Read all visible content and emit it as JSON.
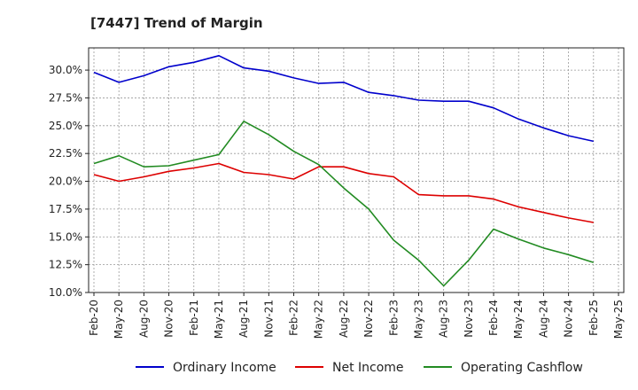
{
  "chart_data": {
    "type": "line",
    "title": "[7447]  Trend of Margin",
    "xlabel": "",
    "ylabel": "",
    "ylim": [
      10.0,
      32.0
    ],
    "yticks": [
      "10.0%",
      "12.5%",
      "15.0%",
      "17.5%",
      "20.0%",
      "22.5%",
      "25.0%",
      "27.5%",
      "30.0%"
    ],
    "ytick_values": [
      10.0,
      12.5,
      15.0,
      17.5,
      20.0,
      22.5,
      25.0,
      27.5,
      30.0
    ],
    "categories": [
      "Feb-20",
      "May-20",
      "Aug-20",
      "Nov-20",
      "Feb-21",
      "May-21",
      "Aug-21",
      "Nov-21",
      "Feb-22",
      "May-22",
      "Aug-22",
      "Nov-22",
      "Feb-23",
      "May-23",
      "Aug-23",
      "Nov-23",
      "Feb-24",
      "May-24",
      "Aug-24",
      "Nov-24",
      "Feb-25",
      "May-25"
    ],
    "grid": true,
    "legend_position": "bottom",
    "series": [
      {
        "name": "Ordinary Income",
        "color": "#0000cc",
        "values": [
          29.8,
          28.9,
          29.5,
          30.3,
          30.7,
          31.3,
          30.2,
          29.9,
          29.3,
          28.8,
          28.9,
          28.0,
          27.7,
          27.3,
          27.2,
          27.2,
          26.6,
          25.6,
          24.8,
          24.1,
          23.6,
          null
        ]
      },
      {
        "name": "Net Income",
        "color": "#dd0000",
        "values": [
          20.6,
          20.0,
          20.4,
          20.9,
          21.2,
          21.6,
          20.8,
          20.6,
          20.2,
          21.3,
          21.3,
          20.7,
          20.4,
          18.8,
          18.7,
          18.7,
          18.4,
          17.7,
          17.2,
          16.7,
          16.3,
          null
        ]
      },
      {
        "name": "Operating Cashflow",
        "color": "#228b22",
        "values": [
          21.6,
          22.3,
          21.3,
          21.4,
          21.9,
          22.4,
          25.4,
          24.2,
          22.7,
          21.5,
          19.4,
          17.5,
          14.7,
          12.9,
          10.6,
          12.9,
          15.7,
          14.8,
          14.0,
          13.4,
          12.7,
          null
        ]
      }
    ]
  }
}
